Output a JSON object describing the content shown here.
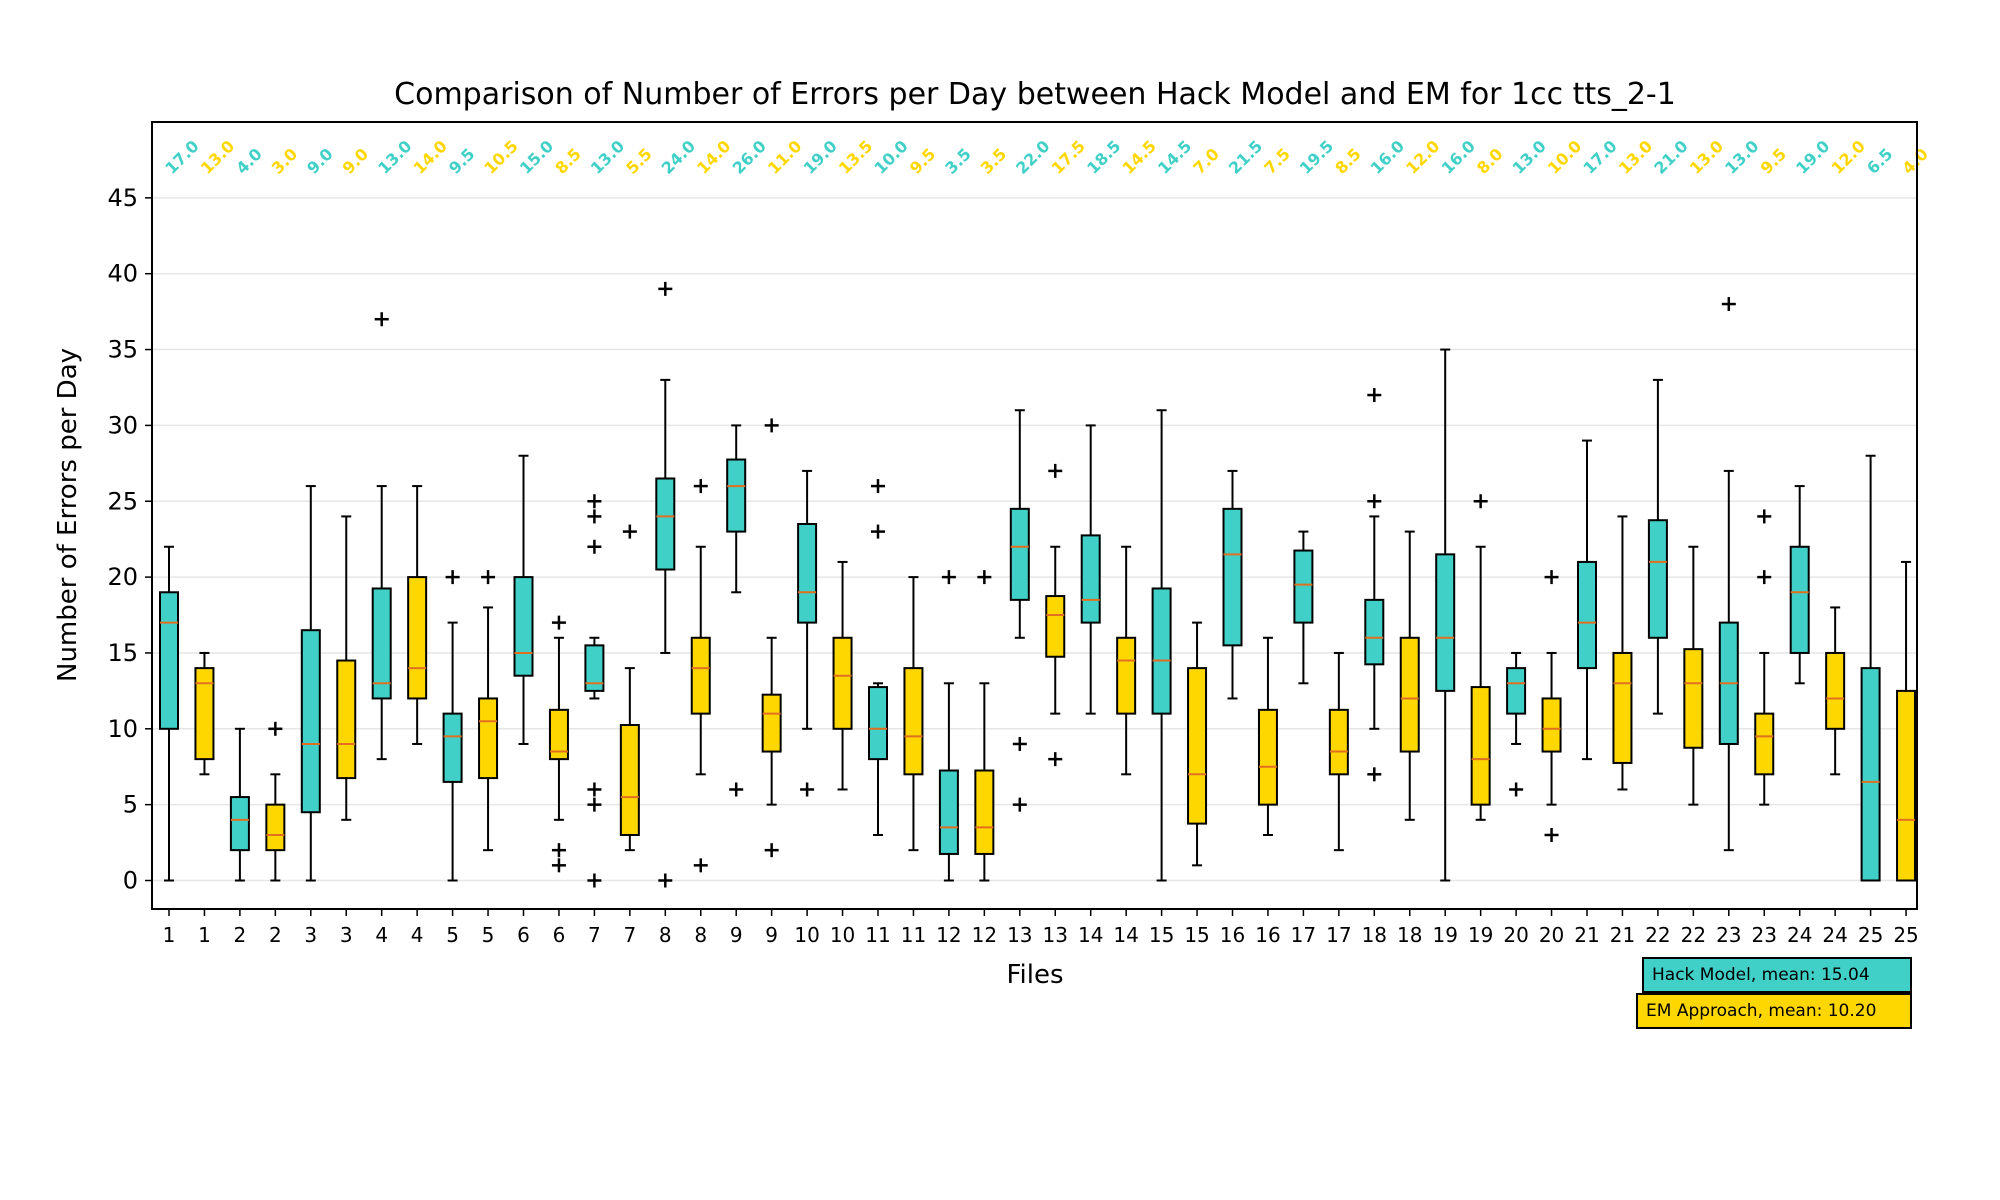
{
  "chart_data": {
    "type": "box",
    "title": "Comparison of Number of Errors per Day between Hack Model and EM for 1cc tts_2-1",
    "xlabel": "Files",
    "ylabel": "Number of Errors per Day",
    "ylim": [
      -2,
      50
    ],
    "yticks": [
      0,
      5,
      10,
      15,
      20,
      25,
      30,
      35,
      40,
      45
    ],
    "grid": "y",
    "legend_position": "bottom-right",
    "colors": {
      "hack": "#40d0c8",
      "em": "#ffd700",
      "median": "#e07020"
    },
    "series": [
      {
        "name": "Hack Model,  mean: 15.04",
        "key": "hack"
      },
      {
        "name": "EM Approach, mean: 10.20",
        "key": "em"
      }
    ],
    "boxes": [
      {
        "label": "1",
        "series": "hack",
        "median": 17.0,
        "q1": 10,
        "q3": 19,
        "whislo": 0,
        "whishi": 22,
        "fliers": [],
        "median_label": "17.0"
      },
      {
        "label": "1",
        "series": "em",
        "median": 13.0,
        "q1": 8,
        "q3": 14,
        "whislo": 7,
        "whishi": 15,
        "fliers": [],
        "median_label": "13.0"
      },
      {
        "label": "2",
        "series": "hack",
        "median": 4.0,
        "q1": 2,
        "q3": 5.5,
        "whislo": 0,
        "whishi": 10,
        "fliers": [],
        "median_label": "4.0"
      },
      {
        "label": "2",
        "series": "em",
        "median": 3.0,
        "q1": 2,
        "q3": 5,
        "whislo": 0,
        "whishi": 7,
        "fliers": [
          10
        ],
        "median_label": "3.0"
      },
      {
        "label": "3",
        "series": "hack",
        "median": 9.0,
        "q1": 4.5,
        "q3": 16.5,
        "whislo": 0,
        "whishi": 26,
        "fliers": [],
        "median_label": "9.0"
      },
      {
        "label": "3",
        "series": "em",
        "median": 9.0,
        "q1": 6.75,
        "q3": 14.5,
        "whislo": 4,
        "whishi": 24,
        "fliers": [],
        "median_label": "9.0"
      },
      {
        "label": "4",
        "series": "hack",
        "median": 13.0,
        "q1": 12,
        "q3": 19.25,
        "whislo": 8,
        "whishi": 26,
        "fliers": [
          37
        ],
        "median_label": "13.0"
      },
      {
        "label": "4",
        "series": "em",
        "median": 14.0,
        "q1": 12,
        "q3": 20,
        "whislo": 9,
        "whishi": 26,
        "fliers": [],
        "median_label": "14.0"
      },
      {
        "label": "5",
        "series": "hack",
        "median": 9.5,
        "q1": 6.5,
        "q3": 11,
        "whislo": 0,
        "whishi": 17,
        "fliers": [
          20
        ],
        "median_label": "9.5"
      },
      {
        "label": "5",
        "series": "em",
        "median": 10.5,
        "q1": 6.75,
        "q3": 12,
        "whislo": 2,
        "whishi": 18,
        "fliers": [
          20
        ],
        "median_label": "10.5"
      },
      {
        "label": "6",
        "series": "hack",
        "median": 15.0,
        "q1": 13.5,
        "q3": 20,
        "whislo": 9,
        "whishi": 28,
        "fliers": [],
        "median_label": "15.0"
      },
      {
        "label": "6",
        "series": "em",
        "median": 8.5,
        "q1": 8,
        "q3": 11.25,
        "whislo": 4,
        "whishi": 16,
        "fliers": [
          17,
          2,
          1
        ],
        "median_label": "8.5"
      },
      {
        "label": "7",
        "series": "hack",
        "median": 13.0,
        "q1": 12.5,
        "q3": 15.5,
        "whislo": 12,
        "whishi": 16,
        "fliers": [
          25,
          24,
          22,
          6,
          5,
          0
        ],
        "median_label": "13.0"
      },
      {
        "label": "7",
        "series": "em",
        "median": 5.5,
        "q1": 3,
        "q3": 10.25,
        "whislo": 2,
        "whishi": 14,
        "fliers": [
          23
        ],
        "median_label": "5.5"
      },
      {
        "label": "8",
        "series": "hack",
        "median": 24.0,
        "q1": 20.5,
        "q3": 26.5,
        "whislo": 15,
        "whishi": 33,
        "fliers": [
          39,
          0
        ],
        "median_label": "24.0"
      },
      {
        "label": "8",
        "series": "em",
        "median": 14.0,
        "q1": 11,
        "q3": 16,
        "whislo": 7,
        "whishi": 22,
        "fliers": [
          26,
          1
        ],
        "median_label": "14.0"
      },
      {
        "label": "9",
        "series": "hack",
        "median": 26.0,
        "q1": 23,
        "q3": 27.75,
        "whislo": 19,
        "whishi": 30,
        "fliers": [
          6
        ],
        "median_label": "26.0"
      },
      {
        "label": "9",
        "series": "em",
        "median": 11.0,
        "q1": 8.5,
        "q3": 12.25,
        "whislo": 5,
        "whishi": 16,
        "fliers": [
          30,
          2
        ],
        "median_label": "11.0"
      },
      {
        "label": "10",
        "series": "hack",
        "median": 19.0,
        "q1": 17,
        "q3": 23.5,
        "whislo": 10,
        "whishi": 27,
        "fliers": [
          6
        ],
        "median_label": "19.0"
      },
      {
        "label": "10",
        "series": "em",
        "median": 13.5,
        "q1": 10,
        "q3": 16,
        "whislo": 6,
        "whishi": 21,
        "fliers": [],
        "median_label": "13.5"
      },
      {
        "label": "11",
        "series": "hack",
        "median": 10.0,
        "q1": 8,
        "q3": 12.75,
        "whislo": 3,
        "whishi": 13,
        "fliers": [
          26,
          23
        ],
        "median_label": "10.0"
      },
      {
        "label": "11",
        "series": "em",
        "median": 9.5,
        "q1": 7,
        "q3": 14,
        "whislo": 2,
        "whishi": 20,
        "fliers": [],
        "median_label": "9.5"
      },
      {
        "label": "12",
        "series": "hack",
        "median": 3.5,
        "q1": 1.75,
        "q3": 7.25,
        "whislo": 0,
        "whishi": 13,
        "fliers": [
          20
        ],
        "median_label": "3.5"
      },
      {
        "label": "12",
        "series": "em",
        "median": 3.5,
        "q1": 1.75,
        "q3": 7.25,
        "whislo": 0,
        "whishi": 13,
        "fliers": [
          20
        ],
        "median_label": "3.5"
      },
      {
        "label": "13",
        "series": "hack",
        "median": 22.0,
        "q1": 18.5,
        "q3": 24.5,
        "whislo": 16,
        "whishi": 31,
        "fliers": [
          9,
          5
        ],
        "median_label": "22.0"
      },
      {
        "label": "13",
        "series": "em",
        "median": 17.5,
        "q1": 14.75,
        "q3": 18.75,
        "whislo": 11,
        "whishi": 22,
        "fliers": [
          27,
          8
        ],
        "median_label": "17.5"
      },
      {
        "label": "14",
        "series": "hack",
        "median": 18.5,
        "q1": 17,
        "q3": 22.75,
        "whislo": 11,
        "whishi": 30,
        "fliers": [],
        "median_label": "18.5"
      },
      {
        "label": "14",
        "series": "em",
        "median": 14.5,
        "q1": 11,
        "q3": 16,
        "whislo": 7,
        "whishi": 22,
        "fliers": [],
        "median_label": "14.5"
      },
      {
        "label": "15",
        "series": "hack",
        "median": 14.5,
        "q1": 11,
        "q3": 19.25,
        "whislo": 0,
        "whishi": 31,
        "fliers": [],
        "median_label": "14.5"
      },
      {
        "label": "15",
        "series": "em",
        "median": 7.0,
        "q1": 3.75,
        "q3": 14,
        "whislo": 1,
        "whishi": 17,
        "fliers": [],
        "median_label": "7.0"
      },
      {
        "label": "16",
        "series": "hack",
        "median": 21.5,
        "q1": 15.5,
        "q3": 24.5,
        "whislo": 12,
        "whishi": 27,
        "fliers": [],
        "median_label": "21.5"
      },
      {
        "label": "16",
        "series": "em",
        "median": 7.5,
        "q1": 5,
        "q3": 11.25,
        "whislo": 3,
        "whishi": 16,
        "fliers": [],
        "median_label": "7.5"
      },
      {
        "label": "17",
        "series": "hack",
        "median": 19.5,
        "q1": 17,
        "q3": 21.75,
        "whislo": 13,
        "whishi": 23,
        "fliers": [],
        "median_label": "19.5"
      },
      {
        "label": "17",
        "series": "em",
        "median": 8.5,
        "q1": 7,
        "q3": 11.25,
        "whislo": 2,
        "whishi": 15,
        "fliers": [],
        "median_label": "8.5"
      },
      {
        "label": "18",
        "series": "hack",
        "median": 16.0,
        "q1": 14.25,
        "q3": 18.5,
        "whislo": 10,
        "whishi": 24,
        "fliers": [
          32,
          25,
          7
        ],
        "median_label": "16.0"
      },
      {
        "label": "18",
        "series": "em",
        "median": 12.0,
        "q1": 8.5,
        "q3": 16,
        "whislo": 4,
        "whishi": 23,
        "fliers": [],
        "median_label": "12.0"
      },
      {
        "label": "19",
        "series": "hack",
        "median": 16.0,
        "q1": 12.5,
        "q3": 21.5,
        "whislo": 0,
        "whishi": 35,
        "fliers": [],
        "median_label": "16.0"
      },
      {
        "label": "19",
        "series": "em",
        "median": 8.0,
        "q1": 5,
        "q3": 12.75,
        "whislo": 4,
        "whishi": 22,
        "fliers": [
          25
        ],
        "median_label": "8.0"
      },
      {
        "label": "20",
        "series": "hack",
        "median": 13.0,
        "q1": 11,
        "q3": 14,
        "whislo": 9,
        "whishi": 15,
        "fliers": [
          6
        ],
        "median_label": "13.0"
      },
      {
        "label": "20",
        "series": "em",
        "median": 10.0,
        "q1": 8.5,
        "q3": 12,
        "whislo": 5,
        "whishi": 15,
        "fliers": [
          20,
          3
        ],
        "median_label": "10.0"
      },
      {
        "label": "21",
        "series": "hack",
        "median": 17.0,
        "q1": 14,
        "q3": 21,
        "whislo": 8,
        "whishi": 29,
        "fliers": [],
        "median_label": "17.0"
      },
      {
        "label": "21",
        "series": "em",
        "median": 13.0,
        "q1": 7.75,
        "q3": 15,
        "whislo": 6,
        "whishi": 24,
        "fliers": [],
        "median_label": "13.0"
      },
      {
        "label": "22",
        "series": "hack",
        "median": 21.0,
        "q1": 16,
        "q3": 23.75,
        "whislo": 11,
        "whishi": 33,
        "fliers": [],
        "median_label": "21.0"
      },
      {
        "label": "22",
        "series": "em",
        "median": 13.0,
        "q1": 8.75,
        "q3": 15.25,
        "whislo": 5,
        "whishi": 22,
        "fliers": [],
        "median_label": "13.0"
      },
      {
        "label": "23",
        "series": "hack",
        "median": 13.0,
        "q1": 9,
        "q3": 17,
        "whislo": 2,
        "whishi": 27,
        "fliers": [
          38
        ],
        "median_label": "13.0"
      },
      {
        "label": "23",
        "series": "em",
        "median": 9.5,
        "q1": 7,
        "q3": 11,
        "whislo": 5,
        "whishi": 15,
        "fliers": [
          24,
          20
        ],
        "median_label": "9.5"
      },
      {
        "label": "24",
        "series": "hack",
        "median": 19.0,
        "q1": 15,
        "q3": 22,
        "whislo": 13,
        "whishi": 26,
        "fliers": [],
        "median_label": "19.0"
      },
      {
        "label": "24",
        "series": "em",
        "median": 12.0,
        "q1": 10,
        "q3": 15,
        "whislo": 7,
        "whishi": 18,
        "fliers": [],
        "median_label": "12.0"
      },
      {
        "label": "25",
        "series": "hack",
        "median": 6.5,
        "q1": 0,
        "q3": 14,
        "whislo": 0,
        "whishi": 28,
        "fliers": [],
        "median_label": "6.5"
      },
      {
        "label": "25",
        "series": "em",
        "median": 4.0,
        "q1": 0,
        "q3": 12.5,
        "whislo": 0,
        "whishi": 21,
        "fliers": [],
        "median_label": "4.0"
      }
    ]
  }
}
